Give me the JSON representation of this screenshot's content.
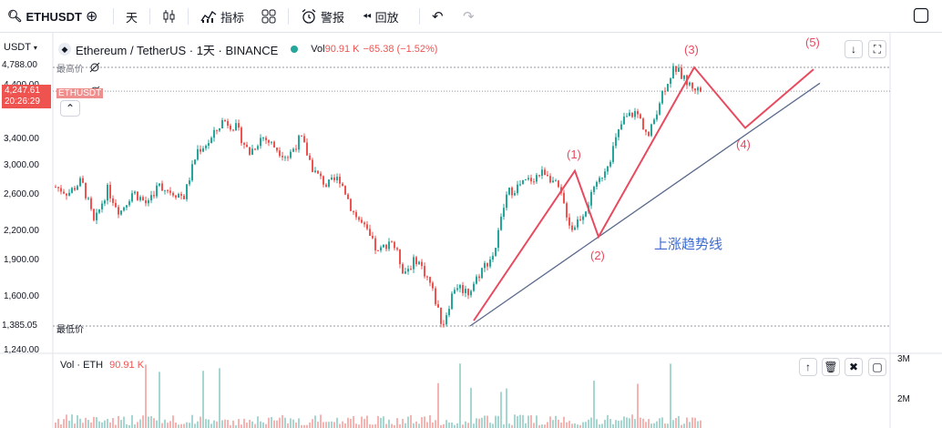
{
  "toolbar": {
    "symbol": "ETHUSDT",
    "interval": "天",
    "indicators_label": "指标",
    "alert_label": "警报",
    "replay_label": "回放"
  },
  "legend": {
    "pair_full": "Ethereum / TetherUS · 1天 · BINANCE",
    "vol_label": "Vol",
    "vol_value": "90.91 K",
    "change_value": "−65.38 (−1.52%)"
  },
  "price_axis": {
    "currency": "USDT",
    "ticks": [
      "4,400.00",
      "3,400.00",
      "3,000.00",
      "2,600.00",
      "2,200.00",
      "1,900.00",
      "1,600.00",
      "1,240.00"
    ],
    "tick_values": [
      4400,
      3400,
      3000,
      2600,
      2200,
      1900,
      1600,
      1240
    ],
    "high_label": "4,788.00",
    "high_value": 4788,
    "high_text": "最高价",
    "low_label": "1,385.05",
    "low_value": 1385.05,
    "low_text": "最低价",
    "current_price": "4,247.61",
    "current_value": 4247.61,
    "countdown": "20:26:29",
    "current_symbol": "ETHUSDT"
  },
  "volume_pane": {
    "title": "Vol · ETH",
    "value": "90.91 K",
    "axis_ticks": [
      "3M",
      "2M"
    ]
  },
  "annotations": {
    "trend_label": "上涨趋势线",
    "waves": [
      "(1)",
      "(2)",
      "(3)",
      "(4)",
      "(5)"
    ],
    "wave_values": [
      2900,
      2120,
      4788,
      3560,
      4740
    ]
  },
  "colors": {
    "up": "#26a69a",
    "down": "#ef5350",
    "wave": "#e84a5f",
    "trend": "#5b6a8c",
    "trend_text": "#3d6bd1",
    "price_badge": "#ef5350"
  },
  "chart_data": {
    "type": "candlestick",
    "ylim": [
      1240,
      4950
    ],
    "series": [
      {
        "name": "ETHUSDT",
        "waypoints": [
          2680,
          2600,
          2760,
          2250,
          2650,
          2380,
          2620,
          2480,
          2700,
          2620,
          2560,
          3200,
          3350,
          3700,
          3560,
          3150,
          3420,
          3250,
          3100,
          3400,
          2900,
          2700,
          2800,
          2400,
          2200,
          1950,
          2100,
          1780,
          1900,
          1700,
          1385,
          1680,
          1620,
          1800,
          1950,
          2600,
          2700,
          2800,
          2900,
          2640,
          2200,
          2400,
          2700,
          3100,
          3700,
          3850,
          3400,
          4200,
          4788,
          4400,
          4250
        ]
      }
    ]
  }
}
